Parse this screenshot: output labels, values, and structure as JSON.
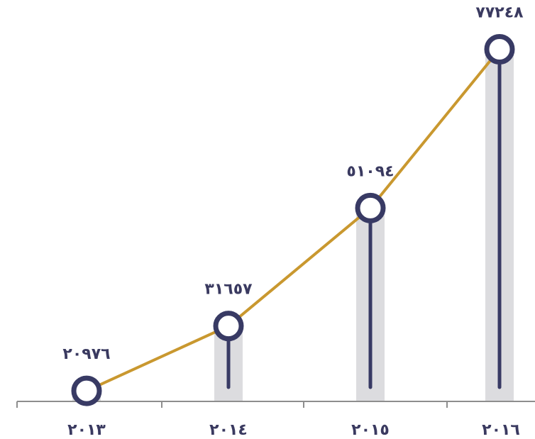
{
  "chart_data": {
    "type": "line",
    "categories": [
      "٢٠١٣",
      "٢٠١٤",
      "٢٠١٥",
      "٢٠١٦"
    ],
    "values": [
      20976,
      31657,
      51094,
      77248
    ],
    "value_labels": [
      "٢٠٩٧٦",
      "٣١٦٥٧",
      "٥١٠٩٤",
      "٧٧٢٤٨"
    ],
    "ylim": [
      0,
      80000
    ],
    "grid": false,
    "legend": "none"
  },
  "colors": {
    "line": "#c9982f",
    "marker": "#383a64",
    "column": "#dcdcdf",
    "axis": "#8e8e8e",
    "text": "#3a3a60"
  }
}
